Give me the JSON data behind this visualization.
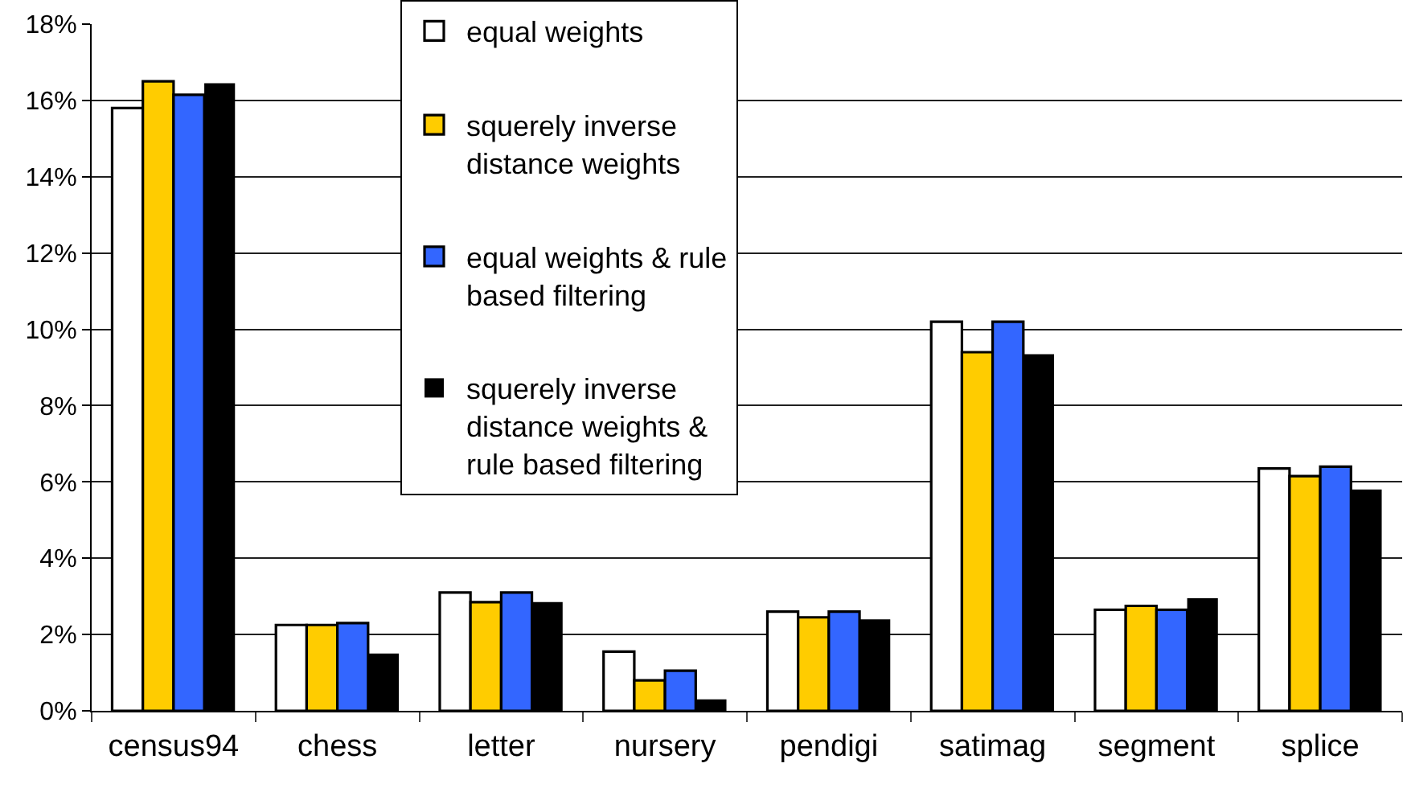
{
  "chart_data": {
    "type": "bar",
    "categories": [
      "census94",
      "chess",
      "letter",
      "nursery",
      "pendigi",
      "satimag",
      "segment",
      "splice"
    ],
    "series": [
      {
        "name": "equal weights",
        "color": "#ffffff",
        "values": [
          15.8,
          2.25,
          3.1,
          1.55,
          2.6,
          10.2,
          2.65,
          6.35
        ]
      },
      {
        "name": "squerely inverse distance weights",
        "color": "#ffcc00",
        "values": [
          16.5,
          2.25,
          2.85,
          0.8,
          2.45,
          9.4,
          2.75,
          6.15
        ]
      },
      {
        "name": "equal weights & rule based filtering",
        "color": "#3366ff",
        "values": [
          16.15,
          2.3,
          3.1,
          1.05,
          2.6,
          10.2,
          2.65,
          6.4
        ]
      },
      {
        "name": "squerely inverse distance weights & rule based filtering",
        "color": "#000000",
        "values": [
          16.45,
          1.5,
          2.85,
          0.3,
          2.4,
          9.35,
          2.95,
          5.8
        ]
      }
    ],
    "ylim": [
      0,
      18
    ],
    "yticks": [
      {
        "value": 0,
        "label": "0%"
      },
      {
        "value": 2,
        "label": "2%"
      },
      {
        "value": 4,
        "label": "4%"
      },
      {
        "value": 6,
        "label": "6%"
      },
      {
        "value": 8,
        "label": "8%"
      },
      {
        "value": 10,
        "label": "10%"
      },
      {
        "value": 12,
        "label": "12%"
      },
      {
        "value": 14,
        "label": "14%"
      },
      {
        "value": 16,
        "label": "16%"
      },
      {
        "value": 18,
        "label": "18%"
      }
    ],
    "grid": "y",
    "legend": "top"
  }
}
